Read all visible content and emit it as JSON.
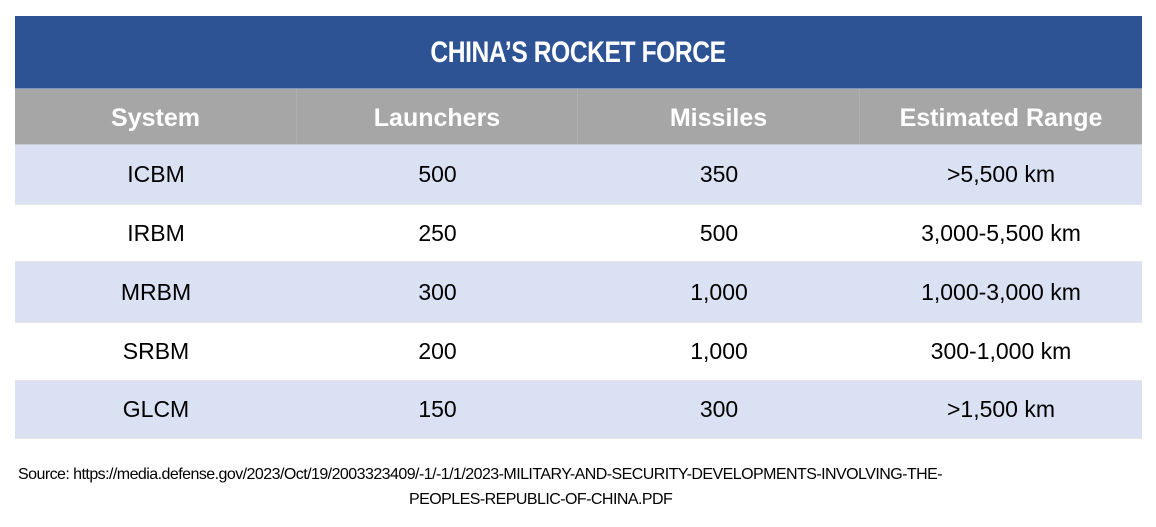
{
  "table": {
    "title": "CHINA’S ROCKET FORCE",
    "colors": {
      "title_bg": "#2E5394",
      "header_bg": "#A6A6A6",
      "shaded_row_bg": "#D9E1F2",
      "plain_row_bg": "#FFFFFF"
    },
    "columns": [
      "System",
      "Launchers",
      "Missiles",
      "Estimated Range"
    ],
    "rows": [
      {
        "system": "ICBM",
        "launchers": "500",
        "missiles": "350",
        "range": ">5,500 km"
      },
      {
        "system": "IRBM",
        "launchers": "250",
        "missiles": "500",
        "range": "3,000-5,500 km"
      },
      {
        "system": "MRBM",
        "launchers": "300",
        "missiles": "1,000",
        "range": "1,000-3,000 km"
      },
      {
        "system": "SRBM",
        "launchers": "200",
        "missiles": "1,000",
        "range": "300-1,000 km"
      },
      {
        "system": "GLCM",
        "launchers": "150",
        "missiles": "300",
        "range": ">1,500 km"
      }
    ]
  },
  "source": {
    "line1": "Source: https://media.defense.gov/2023/Oct/19/2003323409/-1/-1/1/2023-MILITARY-AND-SECURITY-DEVELOPMENTS-INVOLVING-THE-",
    "line2": "PEOPLES-REPUBLIC-OF-CHINA.PDF"
  }
}
